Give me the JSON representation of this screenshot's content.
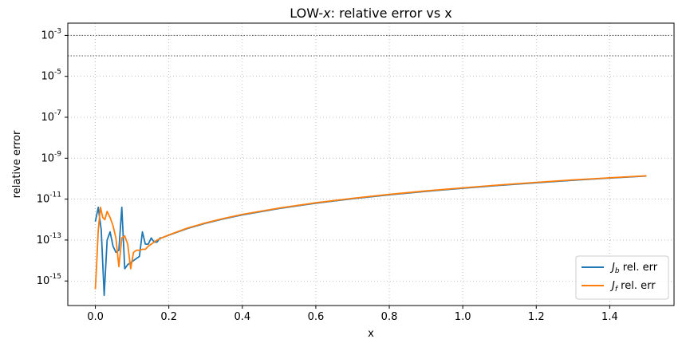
{
  "chart_data": {
    "type": "line",
    "title": {
      "pre": "LOW-",
      "var": "x",
      "post": ": relative error vs x"
    },
    "xlabel": "x",
    "ylabel": "relative error",
    "xlim": [
      -0.075,
      1.575
    ],
    "yscale": "log",
    "ylim_log10": [
      -16.2,
      -2.4
    ],
    "xticks": [
      {
        "value": 0.0,
        "label": "0.0"
      },
      {
        "value": 0.2,
        "label": "0.2"
      },
      {
        "value": 0.4,
        "label": "0.4"
      },
      {
        "value": 0.6,
        "label": "0.6"
      },
      {
        "value": 0.8,
        "label": "0.8"
      },
      {
        "value": 1.0,
        "label": "1.0"
      },
      {
        "value": 1.2,
        "label": "1.2"
      },
      {
        "value": 1.4,
        "label": "1.4"
      }
    ],
    "yticks": [
      {
        "exp": -3,
        "label": "-3"
      },
      {
        "exp": -5,
        "label": "-5"
      },
      {
        "exp": -7,
        "label": "-7"
      },
      {
        "exp": -9,
        "label": "-9"
      },
      {
        "exp": -11,
        "label": "-11"
      },
      {
        "exp": -13,
        "label": "-13"
      },
      {
        "exp": -15,
        "label": "-15"
      }
    ],
    "hlines_log10": [
      -3,
      -4
    ],
    "grid": true,
    "legend": {
      "placement": "lower-right",
      "suffix": " rel. err"
    },
    "series": [
      {
        "name": "J_b rel. err",
        "sym_main": "J",
        "sym_sub": "b",
        "color": "#1f77b4",
        "x": [
          0.0,
          0.008,
          0.016,
          0.024,
          0.032,
          0.04,
          0.048,
          0.056,
          0.064,
          0.072,
          0.08,
          0.088,
          0.096,
          0.104,
          0.112,
          0.12,
          0.128,
          0.136,
          0.144,
          0.152,
          0.16,
          0.168,
          0.176,
          0.18,
          0.2,
          0.25,
          0.3,
          0.35,
          0.4,
          0.5,
          0.6,
          0.7,
          0.8,
          0.9,
          1.0,
          1.1,
          1.2,
          1.3,
          1.4,
          1.5
        ],
        "log10_y": [
          -12.1,
          -11.4,
          -12.5,
          -15.7,
          -13.0,
          -12.6,
          -13.3,
          -13.6,
          -13.5,
          -11.4,
          -14.4,
          -14.2,
          -14.1,
          -14.0,
          -13.9,
          -13.8,
          -12.6,
          -13.2,
          -13.2,
          -12.9,
          -13.1,
          -13.1,
          -12.9,
          -12.9,
          -12.76,
          -12.44,
          -12.18,
          -11.96,
          -11.77,
          -11.46,
          -11.2,
          -10.98,
          -10.79,
          -10.62,
          -10.47,
          -10.33,
          -10.2,
          -10.08,
          -9.97,
          -9.87
        ]
      },
      {
        "name": "J_f rel. err",
        "sym_main": "J",
        "sym_sub": "f",
        "color": "#ff7f0e",
        "x": [
          0.0,
          0.004,
          0.008,
          0.014,
          0.02,
          0.026,
          0.032,
          0.04,
          0.048,
          0.056,
          0.064,
          0.072,
          0.08,
          0.088,
          0.096,
          0.104,
          0.112,
          0.12,
          0.128,
          0.136,
          0.144,
          0.152,
          0.16,
          0.168,
          0.18,
          0.2,
          0.25,
          0.3,
          0.35,
          0.4,
          0.5,
          0.6,
          0.7,
          0.8,
          0.9,
          1.0,
          1.1,
          1.2,
          1.3,
          1.4,
          1.5
        ],
        "log10_y": [
          -15.4,
          -14.0,
          -12.5,
          -11.4,
          -11.9,
          -12.0,
          -11.6,
          -11.9,
          -12.3,
          -12.9,
          -14.3,
          -12.9,
          -12.8,
          -13.2,
          -14.4,
          -13.6,
          -13.5,
          -13.5,
          -13.45,
          -13.45,
          -13.3,
          -13.2,
          -13.1,
          -13.0,
          -12.9,
          -12.75,
          -12.42,
          -12.16,
          -11.94,
          -11.75,
          -11.44,
          -11.18,
          -10.96,
          -10.77,
          -10.6,
          -10.45,
          -10.31,
          -10.18,
          -10.06,
          -9.96,
          -9.86
        ]
      }
    ]
  }
}
